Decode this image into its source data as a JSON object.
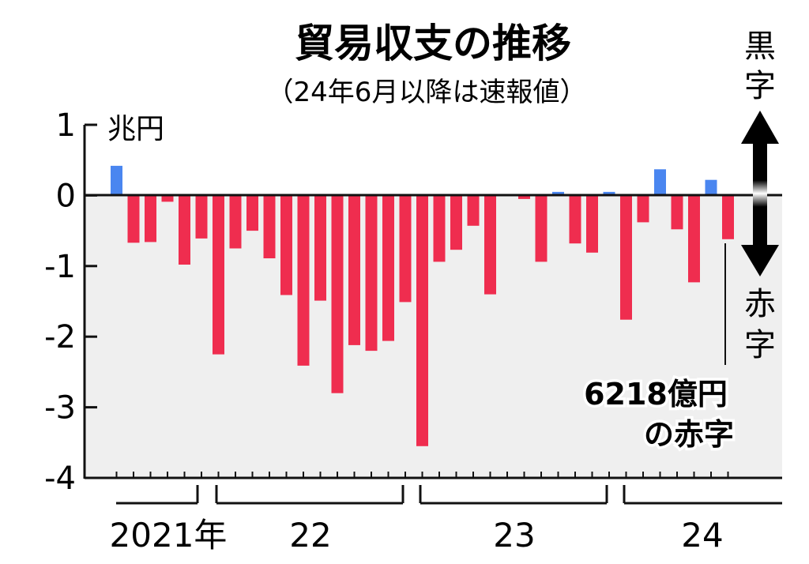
{
  "chart_data": {
    "type": "bar",
    "title": "貿易収支の推移",
    "subtitle": "（24年6月以降は速報値）",
    "ylabel": "兆円",
    "ylim": [
      -4,
      1
    ],
    "yticks": [
      "1",
      "0",
      "-1",
      "-2",
      "-3",
      "-4"
    ],
    "year_labels": [
      "2021年",
      "22",
      "23",
      "24"
    ],
    "surplus_label": "黒字",
    "deficit_label": "赤字",
    "annotation": [
      "6218億円",
      "の赤字"
    ],
    "colors": {
      "surplus": "#4a86f0",
      "deficit": "#ef2d4f",
      "negative_area": "#efefef"
    },
    "grid": false,
    "months": [
      "2021-06",
      "2021-07",
      "2021-08",
      "2021-09",
      "2021-10",
      "2021-11",
      "2021-12",
      "2022-01",
      "2022-02",
      "2022-03",
      "2022-04",
      "2022-05",
      "2022-06",
      "2022-07",
      "2022-08",
      "2022-09",
      "2022-10",
      "2022-11",
      "2022-12",
      "2023-01",
      "2023-02",
      "2023-03",
      "2023-04",
      "2023-05",
      "2023-06",
      "2023-07",
      "2023-08",
      "2023-09",
      "2023-10",
      "2023-11",
      "2023-12",
      "2024-01",
      "2024-02",
      "2024-03",
      "2024-04",
      "2024-05",
      "2024-06"
    ],
    "values": [
      0.42,
      -0.67,
      -0.66,
      -0.09,
      -0.98,
      -0.61,
      -2.25,
      -0.75,
      -0.5,
      -0.89,
      -1.41,
      -2.41,
      -1.49,
      -2.8,
      -2.12,
      -2.2,
      -2.06,
      -1.51,
      -3.55,
      -0.94,
      -0.77,
      -0.43,
      -1.4,
      0.02,
      -0.05,
      -0.94,
      0.05,
      -0.68,
      -0.81,
      0.05,
      -1.76,
      -0.38,
      0.37,
      -0.48,
      -1.23,
      0.22,
      -0.62
    ]
  }
}
